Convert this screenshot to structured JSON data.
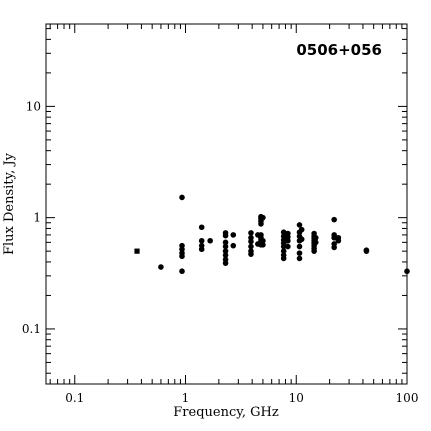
{
  "chart_data": {
    "type": "scatter",
    "title": "0506+056",
    "xlabel": "Frequency, GHz",
    "ylabel": "Flux Density, Jy",
    "xscale": "log",
    "yscale": "log",
    "xlim": [
      0.055,
      100
    ],
    "ylim": [
      0.032,
      55
    ],
    "x_tick_labels": [
      {
        "value": 0.1,
        "label": "0.1"
      },
      {
        "value": 1,
        "label": "1"
      },
      {
        "value": 10,
        "label": "10"
      },
      {
        "value": 100,
        "label": "100"
      }
    ],
    "y_tick_labels": [
      {
        "value": 0.1,
        "label": "0.1"
      },
      {
        "value": 1,
        "label": "1"
      },
      {
        "value": 10,
        "label": "10"
      }
    ],
    "grid": false,
    "title_position": "top-right",
    "series": [
      {
        "marker": "circle",
        "points": [
          [
            0.6,
            0.36
          ],
          [
            0.93,
            1.52
          ],
          [
            0.93,
            0.56
          ],
          [
            0.93,
            0.52
          ],
          [
            0.93,
            0.48
          ],
          [
            0.93,
            0.45
          ],
          [
            0.93,
            0.33
          ],
          [
            1.4,
            0.82
          ],
          [
            1.4,
            0.62
          ],
          [
            1.4,
            0.56
          ],
          [
            1.4,
            0.52
          ],
          [
            1.67,
            0.62
          ],
          [
            2.3,
            0.73
          ],
          [
            2.3,
            0.69
          ],
          [
            2.3,
            0.6
          ],
          [
            2.3,
            0.55
          ],
          [
            2.3,
            0.5
          ],
          [
            2.3,
            0.46
          ],
          [
            2.3,
            0.42
          ],
          [
            2.3,
            0.39
          ],
          [
            2.7,
            0.7
          ],
          [
            2.7,
            0.56
          ],
          [
            3.9,
            0.73
          ],
          [
            3.9,
            0.66
          ],
          [
            3.9,
            0.61
          ],
          [
            3.9,
            0.55
          ],
          [
            3.9,
            0.5
          ],
          [
            3.9,
            0.47
          ],
          [
            4.5,
            0.7
          ],
          [
            4.5,
            0.58
          ],
          [
            4.8,
            1.02
          ],
          [
            4.8,
            0.98
          ],
          [
            4.8,
            0.93
          ],
          [
            4.8,
            0.88
          ],
          [
            4.8,
            0.7
          ],
          [
            4.8,
            0.66
          ],
          [
            4.8,
            0.63
          ],
          [
            4.8,
            0.6
          ],
          [
            4.8,
            0.57
          ],
          [
            5.0,
            1.0
          ],
          [
            5.0,
            0.62
          ],
          [
            5.0,
            0.57
          ],
          [
            7.7,
            0.74
          ],
          [
            7.7,
            0.68
          ],
          [
            7.7,
            0.63
          ],
          [
            7.7,
            0.59
          ],
          [
            7.7,
            0.55
          ],
          [
            7.7,
            0.5
          ],
          [
            7.7,
            0.46
          ],
          [
            7.7,
            0.43
          ],
          [
            8.4,
            0.72
          ],
          [
            8.4,
            0.67
          ],
          [
            8.4,
            0.62
          ],
          [
            8.4,
            0.55
          ],
          [
            10.7,
            0.86
          ],
          [
            10.7,
            0.74
          ],
          [
            10.7,
            0.68
          ],
          [
            10.7,
            0.62
          ],
          [
            10.7,
            0.55
          ],
          [
            10.7,
            0.48
          ],
          [
            10.7,
            0.43
          ],
          [
            11.2,
            0.78
          ],
          [
            11.2,
            0.64
          ],
          [
            14.5,
            0.72
          ],
          [
            14.5,
            0.68
          ],
          [
            14.5,
            0.65
          ],
          [
            14.5,
            0.62
          ],
          [
            14.5,
            0.59
          ],
          [
            14.5,
            0.56
          ],
          [
            14.5,
            0.53
          ],
          [
            14.5,
            0.5
          ],
          [
            15.0,
            0.66
          ],
          [
            15.0,
            0.6
          ],
          [
            22.0,
            0.96
          ],
          [
            22.0,
            0.7
          ],
          [
            22.0,
            0.66
          ],
          [
            22.0,
            0.58
          ],
          [
            22.0,
            0.54
          ],
          [
            24.0,
            0.66
          ],
          [
            24.0,
            0.62
          ],
          [
            43.0,
            0.51
          ],
          [
            43.0,
            0.5
          ],
          [
            100.0,
            0.33
          ]
        ]
      },
      {
        "marker": "square",
        "points": [
          [
            0.365,
            0.5
          ]
        ]
      }
    ]
  }
}
